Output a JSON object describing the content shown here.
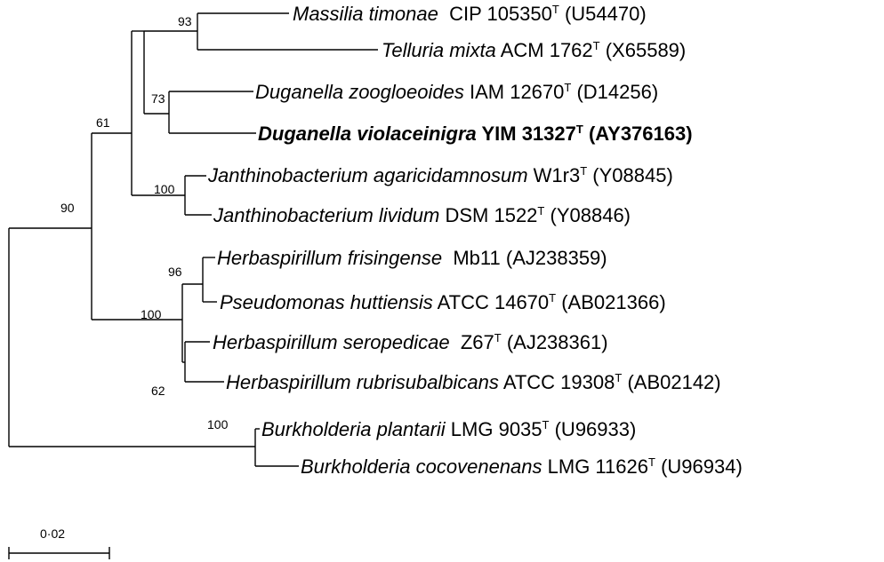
{
  "taxa": [
    {
      "genus_species": "Massilia timonae",
      "strain": "CIP 105350",
      "type_mark": "T",
      "accession": "(U54470)"
    },
    {
      "genus_species": "Telluria mixta",
      "strain": "ACM 1762",
      "type_mark": "T",
      "accession": "(X65589)"
    },
    {
      "genus_species": "Duganella zoogloeoides",
      "strain": "IAM 12670",
      "type_mark": "T",
      "accession": "(D14256)"
    },
    {
      "genus_species": "Duganella violaceinigra",
      "strain": "YIM 31327",
      "type_mark": "T",
      "accession": "(AY376163)"
    },
    {
      "genus_species": "Janthinobacterium agaricidamnosum",
      "strain": "W1r3",
      "type_mark": "T",
      "accession": "(Y08845)"
    },
    {
      "genus_species": "Janthinobacterium lividum",
      "strain": "DSM 1522",
      "type_mark": "T",
      "accession": "(Y08846)"
    },
    {
      "genus_species": "Herbaspirillum frisingense",
      "strain": "Mb11",
      "type_mark": "",
      "accession": "(AJ238359)"
    },
    {
      "genus_species": "Pseudomonas huttiensis",
      "strain": "ATCC 14670",
      "type_mark": "T",
      "accession": "(AB021366)"
    },
    {
      "genus_species": "Herbaspirillum seropedicae",
      "strain": "Z67",
      "type_mark": "T",
      "accession": "(AJ238361)"
    },
    {
      "genus_species": "Herbaspirillum rubrisubalbicans",
      "strain": "ATCC 19308",
      "type_mark": "T",
      "accession": "(AB02142)"
    },
    {
      "genus_species": "Burkholderia plantarii",
      "strain": "LMG 9035",
      "type_mark": "T",
      "accession": "(U96933)"
    },
    {
      "genus_species": "Burkholderia cocovenenans",
      "strain": "LMG 11626",
      "type_mark": "T",
      "accession": "(U96934)"
    }
  ],
  "bootstrap": {
    "massilia_telluria": "93",
    "duganella": "73",
    "upper_clade": "61",
    "janthinobacterium": "100",
    "ingroup": "90",
    "herbaspirillum_frisingense": "96",
    "herbaspirillum_clade": "100",
    "herbaspirillum_rubri": "62",
    "burkholderia": "100"
  },
  "scale_bar": {
    "label": "0·02"
  }
}
